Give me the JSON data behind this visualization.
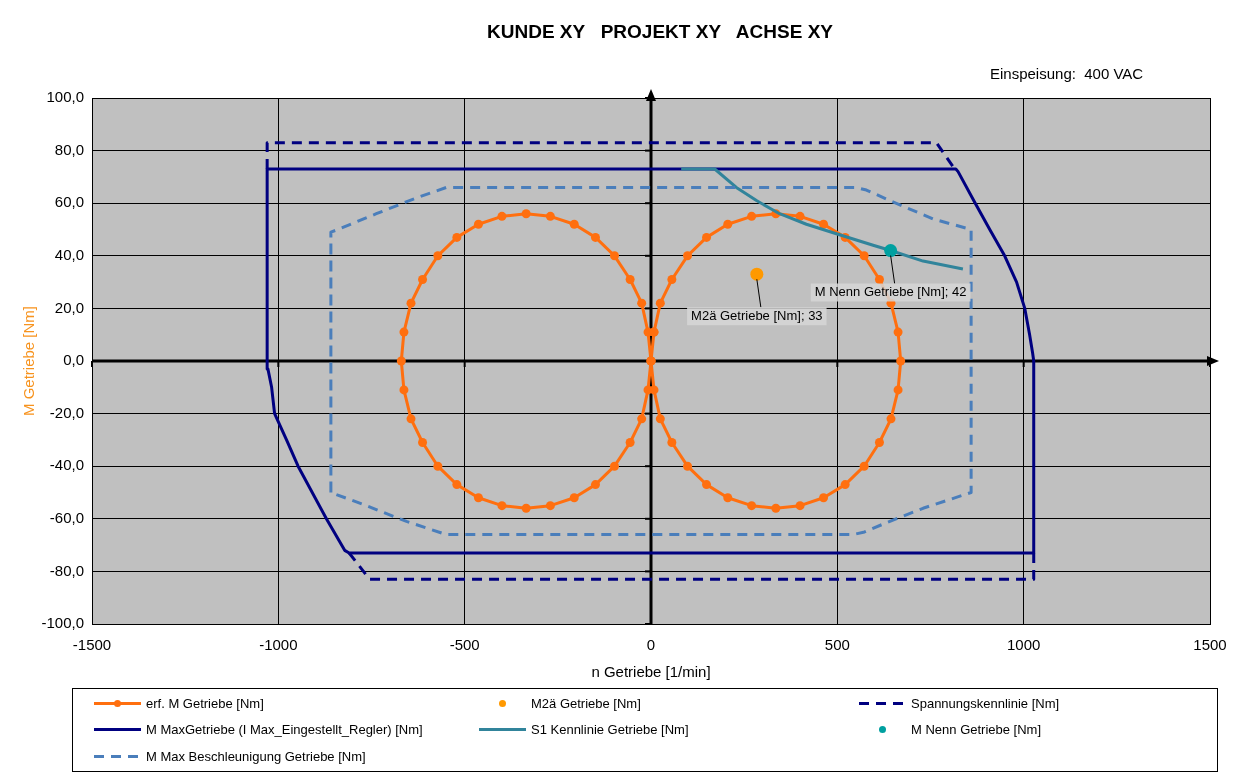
{
  "chart_data": {
    "type": "line",
    "title": "KUNDE XY   PROJEKT XY   ACHSE XY",
    "subtitle": "Einspeisung:  400 VAC",
    "xlabel": "n Getriebe [1/min]",
    "ylabel": "M Getriebe [Nm]",
    "xlim": [
      -1500,
      1500
    ],
    "xticks": [
      -1500,
      -1000,
      -500,
      0,
      500,
      1000,
      1500
    ],
    "ylim": [
      -100,
      100
    ],
    "yticks": [
      {
        "value": -100,
        "label": "-100,0"
      },
      {
        "value": -80,
        "label": "-80,0"
      },
      {
        "value": -60,
        "label": "-60,0"
      },
      {
        "value": -40,
        "label": "-40,0"
      },
      {
        "value": -20,
        "label": "-20,0"
      },
      {
        "value": 0,
        "label": "0,0"
      },
      {
        "value": 20,
        "label": "20,0"
      },
      {
        "value": 40,
        "label": "40,0"
      },
      {
        "value": 60,
        "label": "60,0"
      },
      {
        "value": 80,
        "label": "80,0"
      },
      {
        "value": 100,
        "label": "100,0"
      }
    ],
    "grid": true,
    "legend": "bottom",
    "series": [
      {
        "name": "erf. M Getriebe [Nm]",
        "color": "#ff6f0f",
        "marker": "circle",
        "x": [
          0,
          8,
          25,
          56,
          98,
          149,
          206,
          270,
          335,
          400,
          463,
          521,
          572,
          613,
          644,
          663,
          670,
          663,
          644,
          613,
          572,
          521,
          463,
          400,
          335,
          270,
          206,
          149,
          98,
          56,
          25,
          8,
          0,
          -8,
          -25,
          -56,
          -98,
          -149,
          -206,
          -270,
          -335,
          -400,
          -463,
          -521,
          -572,
          -613,
          -644,
          -663,
          -670,
          -663,
          -644,
          -613,
          -572,
          -521,
          -463,
          -400,
          -335,
          -270,
          -206,
          -149,
          -98,
          -56,
          -25,
          -8,
          0,
          8
        ],
        "values": [
          0,
          11,
          22,
          31,
          40,
          47,
          52,
          55,
          56,
          55,
          52,
          47,
          40,
          31,
          22,
          11,
          0,
          -11,
          -22,
          -31,
          -40,
          -47,
          -52,
          -55,
          -56,
          -55,
          -52,
          -47,
          -40,
          -31,
          -22,
          -11,
          0,
          -11,
          -22,
          -31,
          -40,
          -47,
          -52,
          -55,
          -56,
          -55,
          -52,
          -47,
          -40,
          -31,
          -22,
          -11,
          0,
          11,
          22,
          31,
          40,
          47,
          52,
          55,
          56,
          55,
          52,
          47,
          40,
          31,
          22,
          11,
          0,
          11
        ]
      },
      {
        "name": "M2ä Getriebe [Nm]",
        "type": "scatter",
        "color": "#ff9900",
        "marker": "circle",
        "x": [
          284
        ],
        "values": [
          33
        ]
      },
      {
        "name": "Spannungskennlinie [Nm]",
        "color": "#000080",
        "line_style": "dashed",
        "x": [
          -1030,
          -1030,
          766,
          815,
          null,
          1027,
          1027,
          -755,
          -810
        ],
        "values": [
          73,
          83,
          83,
          73,
          null,
          -73,
          -83,
          -83,
          -73
        ]
      },
      {
        "name": "M MaxGetriebe (I Max_Eingestellt_Regler) [Nm]",
        "color": "#000080",
        "x": [
          -1030,
          -1030,
          818,
          824,
          870,
          909,
          949,
          981,
          1003,
          1016,
          1024,
          1027,
          1027,
          -810,
          -822,
          -871,
          -947,
          -978,
          -1010,
          -1018,
          -1028,
          -1030,
          -1030
        ],
        "values": [
          0,
          73,
          73,
          72,
          60,
          50,
          40,
          30,
          20,
          10,
          3,
          0,
          -73,
          -73,
          -72,
          -60,
          -40,
          -30,
          -20,
          -10,
          -3,
          0,
          73
        ]
      },
      {
        "name": "S1 Kennlinie Getriebe [Nm]",
        "color": "#31849b",
        "x": [
          81,
          171,
          229,
          283,
          345,
          417,
          506,
          596,
          643,
          730,
          837
        ],
        "values": [
          73,
          73,
          66,
          61,
          56,
          52,
          48,
          44,
          42,
          38,
          35
        ]
      },
      {
        "name": "M Nenn Getriebe [Nm]",
        "type": "scatter",
        "color": "#00a0a0",
        "marker": "circle",
        "x": [
          643
        ],
        "values": [
          42
        ]
      },
      {
        "name": "M Max Beschleunigung Getriebe [Nm]",
        "color": "#4a7ebb",
        "line_style": "dashed",
        "x": [
          -859,
          -859,
          -840,
          -737,
          -630,
          -549,
          550,
          578,
          641,
          757,
          859,
          859,
          730,
          623,
          573,
          542,
          -549,
          -656,
          -764,
          -859,
          -859
        ],
        "values": [
          -50,
          49,
          50,
          56,
          62,
          66,
          66,
          65,
          61,
          54,
          50,
          -50,
          -56,
          -62,
          -65,
          -66,
          -66,
          -61,
          -55,
          -50,
          49
        ]
      }
    ],
    "annotations": [
      {
        "text": "M2ä Getriebe [Nm]; 33",
        "x": 284,
        "y": 33
      },
      {
        "text": "M Nenn Getriebe [Nm]; 42",
        "x": 643,
        "y": 42
      }
    ]
  }
}
